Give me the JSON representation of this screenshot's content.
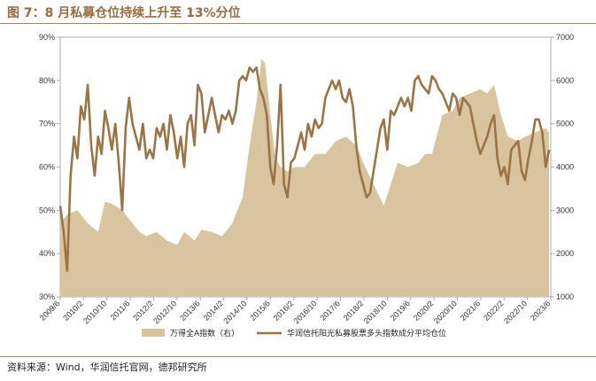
{
  "title": "图 7：8 月私募仓位持续上升至 13%分位",
  "source": "资料来源：Wind，华润信托官网，德邦研究所",
  "colors": {
    "title": "#9b6a3b",
    "area": "#d9c4a0",
    "line": "#9b7445"
  },
  "chart_data": {
    "type": "line",
    "x_tick_labels": [
      "2009/6",
      "2010/2",
      "2010/10",
      "2011/6",
      "2012/2",
      "2012/10",
      "2013/6",
      "2014/2",
      "2014/10",
      "2015/6",
      "2016/2",
      "2016/10",
      "2017/6",
      "2018/2",
      "2018/10",
      "2019/6",
      "2020/2",
      "2020/10",
      "2021/6",
      "2022/2",
      "2022/10",
      "2023/6"
    ],
    "y_left": {
      "ticks": [
        "30%",
        "40%",
        "50%",
        "60%",
        "70%",
        "80%",
        "90%"
      ],
      "range": [
        30,
        90
      ]
    },
    "y_right": {
      "ticks": [
        "1000",
        "2000",
        "3000",
        "4000",
        "5000",
        "6000",
        "7000"
      ],
      "range": [
        1000,
        7000
      ]
    },
    "grid": false,
    "legend_position": "bottom",
    "series": [
      {
        "name": "万得全A指数（右）",
        "kind": "area",
        "axis": "right",
        "x": [
          2009.5,
          2009.7,
          2010.0,
          2010.3,
          2010.6,
          2010.8,
          2011.0,
          2011.3,
          2011.5,
          2011.8,
          2012.0,
          2012.3,
          2012.6,
          2012.9,
          2013.1,
          2013.4,
          2013.6,
          2013.9,
          2014.2,
          2014.5,
          2014.8,
          2015.0,
          2015.2,
          2015.35,
          2015.45,
          2015.6,
          2015.75,
          2015.9,
          2016.1,
          2016.3,
          2016.6,
          2016.9,
          2017.2,
          2017.5,
          2017.8,
          2018.1,
          2018.3,
          2018.6,
          2018.9,
          2019.1,
          2019.3,
          2019.6,
          2019.9,
          2020.1,
          2020.3,
          2020.6,
          2020.9,
          2021.1,
          2021.4,
          2021.7,
          2021.9,
          2022.1,
          2022.3,
          2022.5,
          2022.8,
          2023.0,
          2023.3,
          2023.6,
          2023.7
        ],
        "values": [
          2700,
          2900,
          3000,
          2700,
          2500,
          3200,
          3150,
          3000,
          2800,
          2500,
          2400,
          2500,
          2300,
          2200,
          2500,
          2300,
          2550,
          2500,
          2400,
          2700,
          3300,
          4500,
          5500,
          6500,
          6400,
          5200,
          4200,
          4000,
          3900,
          4000,
          4000,
          4300,
          4300,
          4600,
          4700,
          4500,
          4100,
          3600,
          3100,
          3600,
          4100,
          4000,
          4100,
          4300,
          4300,
          5200,
          5300,
          5600,
          5700,
          5800,
          5700,
          5900,
          5200,
          4700,
          4600,
          4700,
          4800,
          4900,
          4800
        ]
      },
      {
        "name": "华润信托阳光私募股票多头指数成分平均仓位",
        "kind": "line",
        "axis": "left",
        "x": [
          2009.5,
          2009.6,
          2009.7,
          2009.8,
          2009.9,
          2010.0,
          2010.1,
          2010.2,
          2010.3,
          2010.4,
          2010.5,
          2010.6,
          2010.7,
          2010.8,
          2010.9,
          2011.0,
          2011.1,
          2011.2,
          2011.3,
          2011.4,
          2011.5,
          2011.6,
          2011.7,
          2011.8,
          2011.9,
          2012.0,
          2012.1,
          2012.2,
          2012.3,
          2012.4,
          2012.5,
          2012.6,
          2012.7,
          2012.8,
          2012.9,
          2013.0,
          2013.1,
          2013.2,
          2013.3,
          2013.4,
          2013.5,
          2013.6,
          2013.7,
          2013.8,
          2013.9,
          2014.0,
          2014.1,
          2014.2,
          2014.3,
          2014.4,
          2014.5,
          2014.6,
          2014.7,
          2014.8,
          2014.9,
          2015.0,
          2015.1,
          2015.2,
          2015.3,
          2015.4,
          2015.5,
          2015.6,
          2015.7,
          2015.8,
          2015.9,
          2016.0,
          2016.1,
          2016.2,
          2016.3,
          2016.4,
          2016.5,
          2016.6,
          2016.7,
          2016.8,
          2016.9,
          2017.0,
          2017.1,
          2017.2,
          2017.3,
          2017.4,
          2017.5,
          2017.6,
          2017.7,
          2017.8,
          2017.9,
          2018.0,
          2018.1,
          2018.2,
          2018.3,
          2018.4,
          2018.5,
          2018.6,
          2018.7,
          2018.8,
          2018.9,
          2019.0,
          2019.1,
          2019.2,
          2019.3,
          2019.4,
          2019.5,
          2019.6,
          2019.7,
          2019.8,
          2019.9,
          2020.0,
          2020.1,
          2020.2,
          2020.3,
          2020.4,
          2020.5,
          2020.6,
          2020.7,
          2020.8,
          2020.9,
          2021.0,
          2021.1,
          2021.2,
          2021.3,
          2021.4,
          2021.5,
          2021.6,
          2021.7,
          2021.8,
          2021.9,
          2022.0,
          2022.1,
          2022.2,
          2022.3,
          2022.4,
          2022.5,
          2022.6,
          2022.7,
          2022.8,
          2022.9,
          2023.0,
          2023.1,
          2023.2,
          2023.3,
          2023.4,
          2023.5,
          2023.6,
          2023.7
        ],
        "values": [
          51,
          45,
          36,
          58,
          67,
          62,
          74,
          71,
          79,
          65,
          58,
          67,
          63,
          73,
          69,
          64,
          70,
          61,
          50,
          69,
          76,
          70,
          67,
          64,
          70,
          62,
          64,
          62,
          69,
          67,
          70,
          64,
          72,
          68,
          62,
          67,
          60,
          70,
          72,
          65,
          79,
          77,
          68,
          72,
          76,
          72,
          68,
          72,
          71,
          73,
          70,
          73,
          80,
          81,
          80,
          83,
          82,
          83,
          78,
          76,
          72,
          60,
          56,
          65,
          79,
          56,
          53,
          61,
          62,
          65,
          68,
          64,
          70,
          67,
          71,
          69,
          70,
          76,
          78,
          80,
          78,
          80,
          76,
          75,
          78,
          74,
          65,
          59,
          56,
          53,
          54,
          59,
          64,
          69,
          71,
          64,
          73,
          72,
          74,
          76,
          74,
          76,
          73,
          80,
          81,
          79,
          78,
          77,
          81,
          80,
          78,
          77,
          75,
          73,
          77,
          76,
          72,
          76,
          75,
          74,
          70,
          66,
          63,
          65,
          67,
          70,
          72,
          62,
          58,
          60,
          56,
          64,
          65,
          66,
          59,
          57,
          62,
          66,
          71,
          71,
          68,
          60,
          64
        ]
      }
    ]
  }
}
